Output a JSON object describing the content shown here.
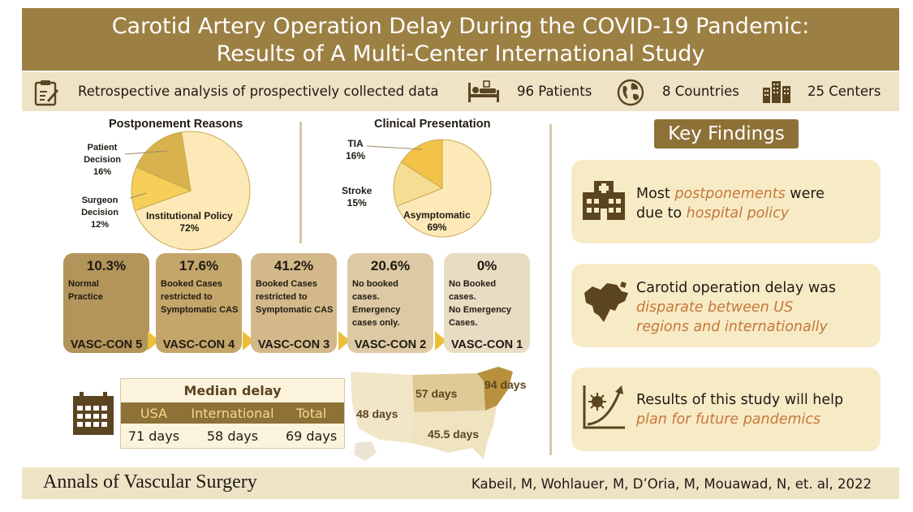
{
  "title": {
    "line1": "Carotid Artery Operation Delay During the COVID-19 Pandemic:",
    "line2": "Results of A Multi-Center International Study"
  },
  "info": {
    "design": "Retrospective analysis of prospectively collected data",
    "patients": "96 Patients",
    "countries": "8 Countries",
    "centers": "25 Centers"
  },
  "chart_data": [
    {
      "type": "pie",
      "title": "Postponement Reasons",
      "slices": [
        {
          "label": "Institutional Policy",
          "value": 72,
          "display": "72%",
          "color": "#fde9b8"
        },
        {
          "label": "Surgeon Decision",
          "value": 12,
          "display": "12%",
          "color": "#f5cf5a"
        },
        {
          "label": "Patient Decision",
          "value": 16,
          "display": "16%",
          "color": "#d8b24c"
        }
      ]
    },
    {
      "type": "pie",
      "title": "Clinical Presentation",
      "slices": [
        {
          "label": "Asymptomatic",
          "value": 69,
          "display": "69%",
          "color": "#fde9b8"
        },
        {
          "label": "Stroke",
          "value": 15,
          "display": "15%",
          "color": "#f5dd93"
        },
        {
          "label": "TIA",
          "value": 16,
          "display": "16%",
          "color": "#f2c249"
        }
      ]
    }
  ],
  "vasc_con": [
    {
      "pct": "10.3%",
      "desc": [
        "Normal",
        "Practice"
      ],
      "level": "VASC-CON 5",
      "color": "#b3945a"
    },
    {
      "pct": "17.6%",
      "desc": [
        "Booked Cases",
        "restricted to",
        "Symptomatic CAS"
      ],
      "level": "VASC-CON 4",
      "color": "#c4a56a"
    },
    {
      "pct": "41.2%",
      "desc": [
        "Booked Cases",
        "restricted to",
        "Symptomatic CAS"
      ],
      "level": "VASC-CON 3",
      "color": "#d3b98a"
    },
    {
      "pct": "20.6%",
      "desc": [
        "No booked",
        "cases.",
        "Emergency",
        "cases only."
      ],
      "level": "VASC-CON 2",
      "color": "#ddc9a4"
    },
    {
      "pct": "0%",
      "desc": [
        "No Booked",
        "cases.",
        "No Emergency",
        "Cases."
      ],
      "level": "VASC-CON 1",
      "color": "#e8dcc3"
    }
  ],
  "median_delay": {
    "title": "Median delay",
    "headers": [
      "USA",
      "International",
      "Total"
    ],
    "values": [
      "71 days",
      "58 days",
      "69 days"
    ]
  },
  "map_labels": {
    "west": "48 days",
    "midwest": "57 days",
    "northeast": "94 days",
    "south": "45.5 days"
  },
  "key_findings": {
    "title": "Key Findings",
    "items": [
      {
        "lines": [
          [
            "Most ",
            "postponements",
            " were"
          ],
          [
            "due to ",
            "hospital policy",
            ""
          ]
        ]
      },
      {
        "lines": [
          [
            "Carotid operation delay was",
            "",
            ""
          ],
          [
            "",
            "disparate between US",
            ""
          ],
          [
            "",
            "regions and internationally",
            ""
          ]
        ]
      },
      {
        "lines": [
          [
            "Results of this study will help",
            "",
            ""
          ],
          [
            "",
            "plan for future pandemics",
            ""
          ]
        ]
      }
    ]
  },
  "footer": {
    "journal": "Annals of Vascular Surgery",
    "citation": "Kabeil, M, Wohlauer, M, D’Oria, M, Mouawad, N, et. al, 2022"
  },
  "colors": {
    "brand_dark": "#9c8043",
    "brand_light": "#efe3c6",
    "accent_text": "#c6773a",
    "card_bg": "#f7ebc6"
  }
}
